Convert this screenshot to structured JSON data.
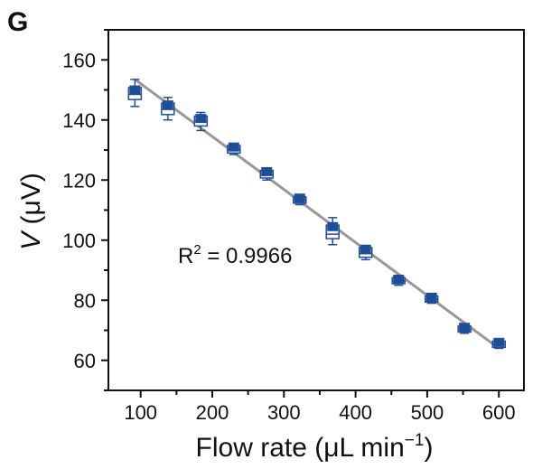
{
  "panel_label": "G",
  "chart_data": {
    "type": "box",
    "xlabel": "Flow rate (μL min",
    "xlabel_sup": "−1",
    "xlabel_suffix": ")",
    "ylabel_var": "V",
    "ylabel_unit": " (μV)",
    "xlim": [
      55,
      635
    ],
    "ylim": [
      50,
      170
    ],
    "xticks": [
      100,
      200,
      300,
      400,
      500,
      600
    ],
    "yticks": [
      60,
      80,
      100,
      120,
      140,
      160
    ],
    "annotation": {
      "text_pre": "R",
      "sup": "2",
      "text_post": " = 0.9966"
    },
    "fit_line": {
      "x": [
        92,
        600
      ],
      "y": [
        153.5,
        64.0
      ]
    },
    "boxes": [
      {
        "x": 92,
        "mean": 150.0,
        "q1": 146.8,
        "q3": 150.8,
        "median": 148.5,
        "min": 144.5,
        "max": 153.5
      },
      {
        "x": 138,
        "mean": 145.0,
        "q1": 141.8,
        "q3": 145.6,
        "median": 143.5,
        "min": 140.0,
        "max": 147.5
      },
      {
        "x": 184,
        "mean": 140.5,
        "q1": 138.0,
        "q3": 141.3,
        "median": 139.5,
        "min": 136.5,
        "max": 142.5
      },
      {
        "x": 230,
        "mean": 131.0,
        "q1": 129.0,
        "q3": 131.5,
        "median": 130.2,
        "min": 128.5,
        "max": 132.0
      },
      {
        "x": 276,
        "mean": 122.8,
        "q1": 120.7,
        "q3": 123.2,
        "median": 121.8,
        "min": 120.0,
        "max": 123.8
      },
      {
        "x": 322,
        "mean": 114.0,
        "q1": 112.3,
        "q3": 114.4,
        "median": 113.4,
        "min": 111.8,
        "max": 114.8
      },
      {
        "x": 368,
        "mean": 104.5,
        "q1": 100.5,
        "q3": 105.0,
        "median": 102.0,
        "min": 98.5,
        "max": 107.5
      },
      {
        "x": 414,
        "mean": 97.0,
        "q1": 94.3,
        "q3": 97.5,
        "median": 95.5,
        "min": 93.5,
        "max": 98.2
      },
      {
        "x": 460,
        "mean": 87.0,
        "q1": 85.5,
        "q3": 87.5,
        "median": 86.4,
        "min": 85.0,
        "max": 88.0
      },
      {
        "x": 506,
        "mean": 81.0,
        "q1": 79.4,
        "q3": 81.4,
        "median": 80.2,
        "min": 79.0,
        "max": 81.8
      },
      {
        "x": 552,
        "mean": 71.0,
        "q1": 69.4,
        "q3": 71.4,
        "median": 70.2,
        "min": 69.0,
        "max": 71.8
      },
      {
        "x": 600,
        "mean": 66.0,
        "q1": 64.3,
        "q3": 66.4,
        "median": 65.2,
        "min": 64.0,
        "max": 66.8
      }
    ],
    "colors": {
      "box": "#1f4e99",
      "line": "#999999",
      "axis": "#111111"
    }
  }
}
